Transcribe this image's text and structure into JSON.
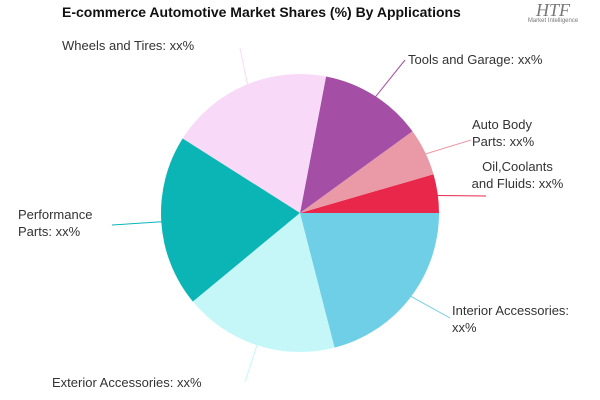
{
  "title": "E-commerce Automotive Market Shares (%) By Applications",
  "logo": {
    "name": "HTF",
    "tagline": "Market Intelligence"
  },
  "chart_data": {
    "type": "pie",
    "categories": [
      "Oil,Coolants and Fluids: xx%",
      "Auto Body Parts: xx%",
      "Tools and Garage: xx%",
      "Wheels and Tires: xx%",
      "Performance Parts: xx%",
      "Exterior Accessories: xx%",
      "Interior Accessories: xx%"
    ],
    "values": [
      4.5,
      5.5,
      12,
      19,
      20,
      18,
      21
    ],
    "colors": [
      "#e8274b",
      "#ea9aa6",
      "#a44ea6",
      "#f8d9f8",
      "#0bb5b5",
      "#c5f7f9",
      "#6ecfe6"
    ]
  }
}
